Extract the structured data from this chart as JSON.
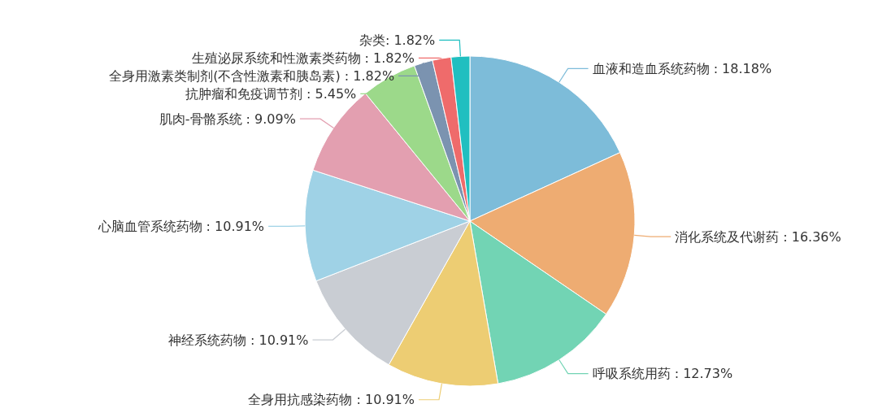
{
  "chart_data": {
    "type": "pie",
    "categories": [
      "血液和造血系统药物",
      "消化系统及代谢药",
      "呼吸系统用药",
      "全身用抗感染药物",
      "神经系统药物",
      "心脑血管系统药物",
      "肌肉-骨骼系统",
      "抗肿瘤和免疫调节剂",
      "全身用激素类制剂(不含性激素和胰岛素)",
      "生殖泌尿系统和性激素类药物",
      "杂类"
    ],
    "values": [
      18.18,
      16.36,
      12.73,
      10.91,
      10.91,
      10.91,
      9.09,
      5.45,
      1.82,
      1.82,
      1.82
    ],
    "value_labels": [
      " : 18.18%",
      " : 16.36%",
      " : 12.73%",
      " : 10.91%",
      " : 10.91%",
      " : 10.91%",
      " : 9.09%",
      " : 5.45%",
      " : 1.82%",
      " : 1.82%",
      ": 1.82%"
    ],
    "colors": [
      "#7dbcd9",
      "#eeac72",
      "#72d4b4",
      "#edcd73",
      "#c9cdd3",
      "#9fd2e6",
      "#e39fb0",
      "#9cd98a",
      "#7b93b0",
      "#ef6b6b",
      "#20bfc0"
    ]
  }
}
